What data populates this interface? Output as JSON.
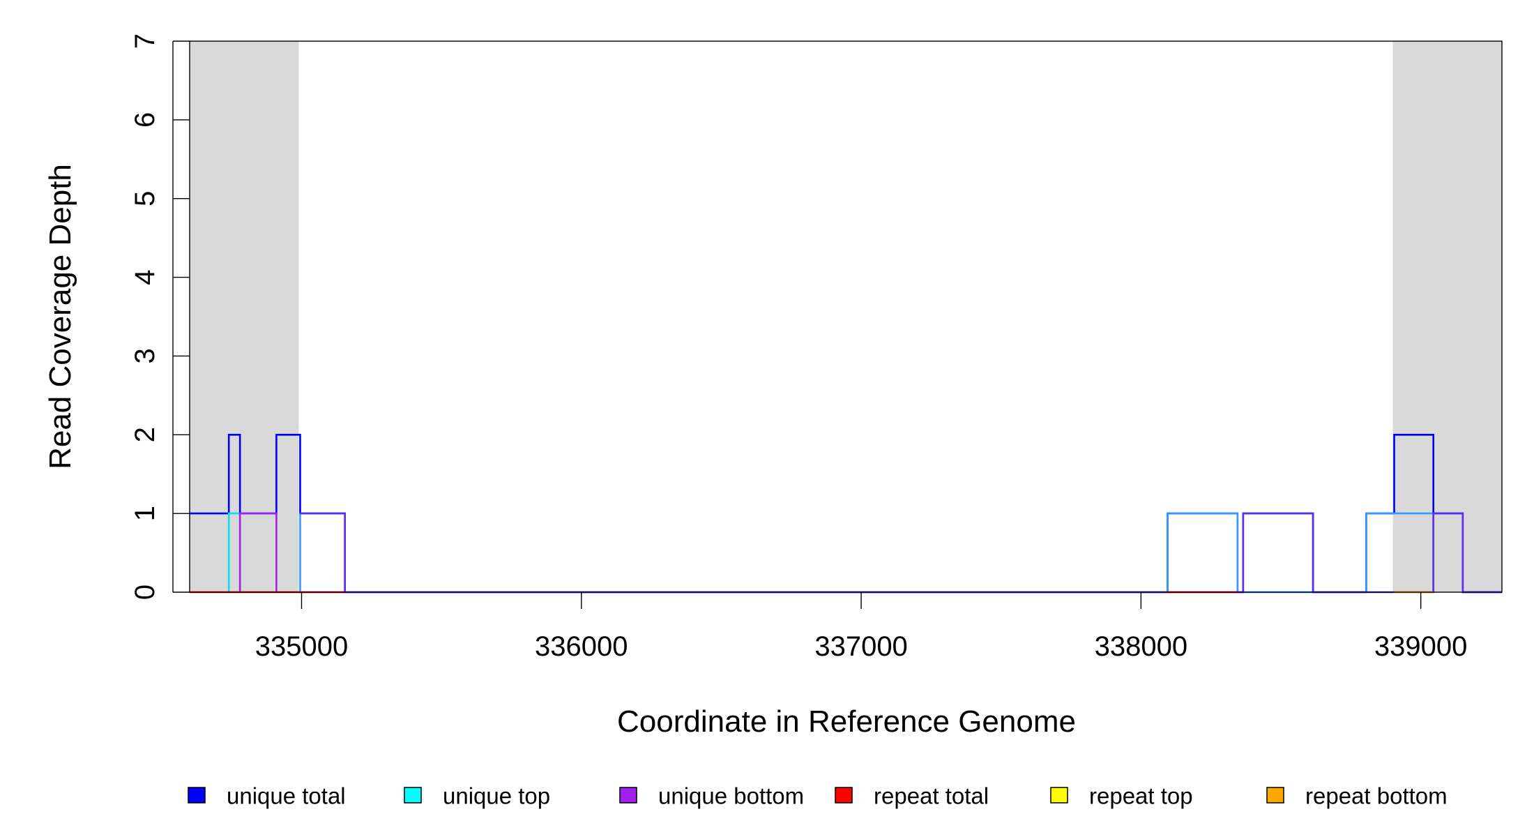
{
  "chart_data": {
    "type": "line",
    "xlabel": "Coordinate in Reference Genome",
    "ylabel": "Read Coverage Depth",
    "xlim": [
      334600,
      339290
    ],
    "ylim": [
      0,
      7
    ],
    "x_ticks": [
      335000,
      336000,
      337000,
      338000,
      339000
    ],
    "y_ticks": [
      0,
      1,
      2,
      3,
      4,
      5,
      6,
      7
    ],
    "shaded_regions": [
      {
        "x0": 334600,
        "x1": 334990,
        "color": "#d9d9d9"
      },
      {
        "x0": 338900,
        "x1": 339290,
        "color": "#d9d9d9"
      }
    ],
    "series": [
      {
        "name": "unique total",
        "color": "#0000ff",
        "points": [
          [
            334600,
            1
          ],
          [
            334740,
            1
          ],
          [
            334740,
            2
          ],
          [
            334780,
            2
          ],
          [
            334780,
            1
          ],
          [
            334910,
            1
          ],
          [
            334910,
            2
          ],
          [
            334995,
            2
          ],
          [
            334995,
            1
          ],
          [
            335155,
            1
          ],
          [
            335155,
            0
          ],
          [
            338095,
            0
          ],
          [
            338095,
            1
          ],
          [
            338345,
            1
          ],
          [
            338345,
            0
          ],
          [
            338365,
            0
          ],
          [
            338365,
            1
          ],
          [
            338615,
            1
          ],
          [
            338615,
            0
          ],
          [
            338805,
            0
          ],
          [
            338805,
            1
          ],
          [
            338905,
            1
          ],
          [
            338905,
            2
          ],
          [
            339045,
            2
          ],
          [
            339045,
            1
          ],
          [
            339150,
            1
          ],
          [
            339150,
            0
          ],
          [
            339290,
            0
          ]
        ]
      },
      {
        "name": "unique top",
        "color": "#00e5ee",
        "points": [
          [
            334740,
            0
          ],
          [
            334740,
            1
          ],
          [
            334780,
            1
          ],
          [
            334780,
            0
          ]
        ]
      },
      {
        "name": "unique top",
        "color": "#3399ff",
        "points": [
          [
            334995,
            0
          ],
          [
            334995,
            1
          ],
          [
            334995,
            0
          ],
          [
            338095,
            0
          ],
          [
            338095,
            1
          ],
          [
            338345,
            1
          ],
          [
            338345,
            0
          ],
          [
            338805,
            0
          ],
          [
            338805,
            1
          ],
          [
            338905,
            1
          ],
          [
            338905,
            1
          ],
          [
            339045,
            1
          ],
          [
            339045,
            0
          ]
        ]
      },
      {
        "name": "unique bottom",
        "color": "#a020f0",
        "points": [
          [
            334780,
            0
          ],
          [
            334780,
            1
          ],
          [
            334910,
            1
          ],
          [
            334910,
            0
          ]
        ]
      },
      {
        "name": "unique bottom",
        "color": "#5a2cf0",
        "points": [
          [
            334995,
            1
          ],
          [
            335155,
            1
          ],
          [
            335155,
            0
          ],
          [
            338365,
            0
          ],
          [
            338365,
            1
          ],
          [
            338615,
            1
          ],
          [
            338615,
            0
          ],
          [
            339045,
            0
          ],
          [
            339045,
            1
          ],
          [
            339150,
            1
          ],
          [
            339150,
            0
          ],
          [
            339290,
            0
          ]
        ]
      },
      {
        "name": "repeat total",
        "color": "#ff0000",
        "points": [
          [
            334600,
            0
          ],
          [
            335155,
            0
          ]
        ]
      },
      {
        "name": "repeat total",
        "color": "#ff0000",
        "points": [
          [
            338095,
            0
          ],
          [
            338345,
            0
          ]
        ]
      },
      {
        "name": "repeat top",
        "color": "#ffff00",
        "points": []
      },
      {
        "name": "repeat bottom",
        "color": "#ffa500",
        "points": [
          [
            338905,
            0
          ],
          [
            339045,
            0
          ]
        ]
      }
    ],
    "legend": {
      "placement": "bottom",
      "items": [
        {
          "label": "unique total",
          "color": "#0000ff"
        },
        {
          "label": "unique top",
          "color": "#00ffff"
        },
        {
          "label": "unique bottom",
          "color": "#a020f0"
        },
        {
          "label": "repeat total",
          "color": "#ff0000"
        },
        {
          "label": "repeat top",
          "color": "#ffff00"
        },
        {
          "label": "repeat bottom",
          "color": "#ffa500"
        }
      ]
    },
    "grid": false
  }
}
